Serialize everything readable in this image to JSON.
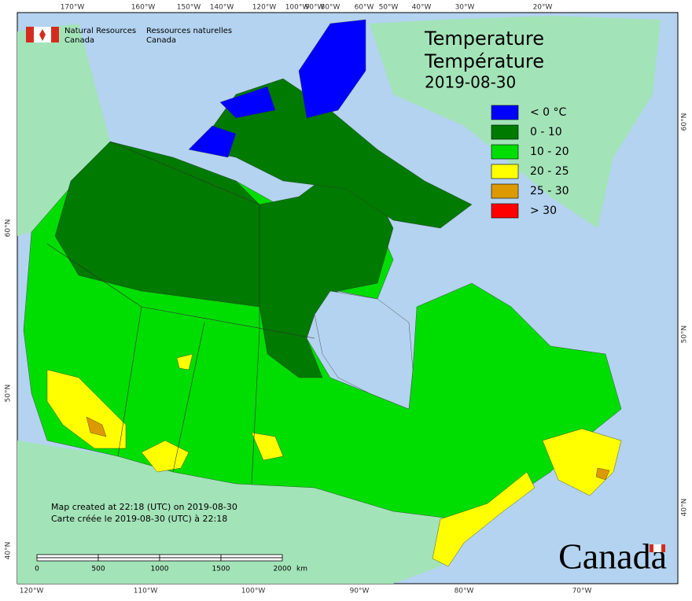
{
  "header": {
    "agency_en": [
      "Natural Resources",
      "Canada"
    ],
    "agency_fr": [
      "Ressources naturelles",
      "Canada"
    ]
  },
  "title": [
    "Temperature",
    "Température",
    "2019-08-30"
  ],
  "legend": [
    {
      "label": "< 0 °C",
      "color": "#0000ff"
    },
    {
      "label": "0 - 10",
      "color": "#007a00"
    },
    {
      "label": "10 - 20",
      "color": "#00dd00"
    },
    {
      "label": "20 - 25",
      "color": "#ffff00"
    },
    {
      "label": "25 - 30",
      "color": "#dd9900"
    },
    {
      "label": "> 30",
      "color": "#ff0000"
    }
  ],
  "graticule": {
    "top": [
      "170°W",
      "160°W",
      "150°W",
      "140°W",
      "120°W",
      "100°W",
      "90°W",
      "80°W",
      "60°W",
      "50°W",
      "40°W",
      "30°W",
      "20°W"
    ],
    "bottom": [
      "120°W",
      "110°W",
      "100°W",
      "90°W",
      "80°W",
      "70°W"
    ],
    "left": [
      "60°N",
      "50°N",
      "40°N"
    ],
    "right": [
      "60°N",
      "50°N",
      "40°N"
    ]
  },
  "notes": [
    "Map created at 22:18 (UTC) on 2019-08-30",
    "Carte créée le 2019-08-30 (UTC) à 22:18"
  ],
  "scale_bar": {
    "labels": [
      "0",
      "500",
      "1000",
      "1500",
      "2000"
    ],
    "unit": "km"
  },
  "wordmark": "Canada"
}
